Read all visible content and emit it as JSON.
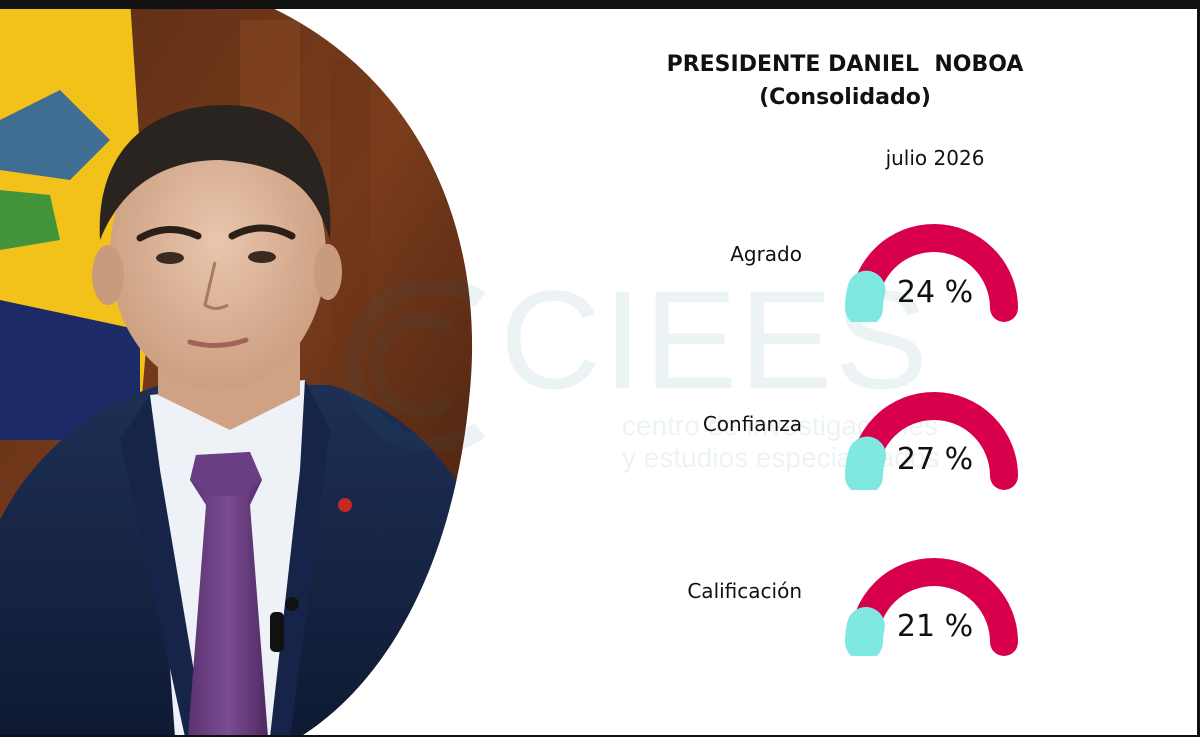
{
  "header": {
    "title_line1": "PRESIDENTE DANIEL  NOBOA",
    "title_line2": "(Consolidado)",
    "period": "julio 2026"
  },
  "watermark": {
    "brand": "CIEES",
    "line1": "centro de investigaciones",
    "line2": "y estudios especializados"
  },
  "colors": {
    "gauge_track": "#d8004c",
    "gauge_fill": "#7fe8e0",
    "text": "#111111"
  },
  "photo": {
    "icon": "portrait-photo"
  },
  "chart_data": {
    "type": "gauge",
    "title": "PRESIDENTE DANIEL  NOBOA (Consolidado)",
    "period": "julio 2026",
    "unit": "%",
    "max": 100,
    "items": [
      {
        "label": "Agrado",
        "value": 24,
        "display": "24 %"
      },
      {
        "label": "Confianza",
        "value": 27,
        "display": "27 %"
      },
      {
        "label": "Calificación",
        "value": 21,
        "display": "21 %"
      }
    ]
  }
}
